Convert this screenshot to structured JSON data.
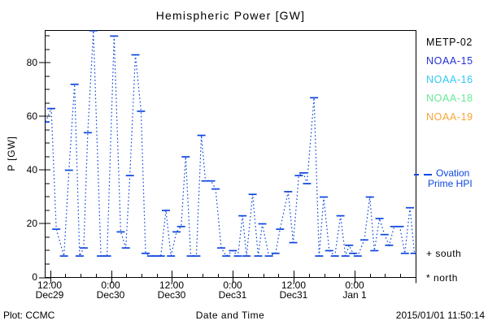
{
  "title": "Hemispheric Power [GW]",
  "footer": {
    "plot_credit": "Plot: CCMC",
    "timestamp": "2015/01/01 11:50:14"
  },
  "legend": {
    "satellites": [
      {
        "label": "METP-02",
        "color": "#000000"
      },
      {
        "label": "NOAA-15",
        "color": "#2231d9"
      },
      {
        "label": "NOAA-16",
        "color": "#2fc6f8"
      },
      {
        "label": "NOAA-18",
        "color": "#66e896"
      },
      {
        "label": "NOAA-19",
        "color": "#f7a437"
      }
    ],
    "line_series": {
      "label_line1": "Ovation",
      "label_line2": "Prime HPI",
      "color": "#0d47e0"
    },
    "symbols": [
      {
        "symbol": "+",
        "label": "south"
      },
      {
        "symbol": "*",
        "label": "north"
      }
    ]
  },
  "chart_data": {
    "type": "line",
    "title": "Hemispheric Power [GW]",
    "xlabel": "Date and Time",
    "ylabel": "P [GW]",
    "series_name": "Ovation Prime HPI",
    "line_style": "dotted connectors with horizontal dash markers",
    "color": "#0d46dd",
    "ylim": [
      0,
      92.1
    ],
    "y_major_ticks": [
      0,
      20,
      40,
      60,
      80
    ],
    "y_minor_step": 5,
    "x_range_hours": [
      -1,
      72.1
    ],
    "x_minor_step_hours": 3,
    "x_major_ticks": [
      {
        "t": 0,
        "time": "12:00",
        "date": "Dec29"
      },
      {
        "t": 12,
        "time": "0:00",
        "date": "Dec30"
      },
      {
        "t": 24,
        "time": "12:00",
        "date": "Dec30"
      },
      {
        "t": 36,
        "time": "0:00",
        "date": "Dec31"
      },
      {
        "t": 48,
        "time": "12:00",
        "date": "Dec31"
      },
      {
        "t": 60,
        "time": "0:00",
        "date": "Jan 1"
      },
      {
        "t": 72,
        "time": "",
        "date": ""
      }
    ],
    "points": [
      [
        -0.9,
        58
      ],
      [
        0.2,
        63
      ],
      [
        1.2,
        18
      ],
      [
        2.7,
        8
      ],
      [
        3.7,
        40
      ],
      [
        4.8,
        72
      ],
      [
        5.8,
        8
      ],
      [
        6.6,
        11
      ],
      [
        7.4,
        54
      ],
      [
        8.5,
        92
      ],
      [
        10.0,
        8
      ],
      [
        11.2,
        8
      ],
      [
        12.6,
        90
      ],
      [
        13.9,
        17
      ],
      [
        14.9,
        11
      ],
      [
        15.7,
        38
      ],
      [
        16.8,
        83
      ],
      [
        17.9,
        62
      ],
      [
        18.8,
        9
      ],
      [
        19.9,
        8
      ],
      [
        20.9,
        8
      ],
      [
        21.8,
        8
      ],
      [
        22.8,
        25
      ],
      [
        23.8,
        8
      ],
      [
        24.9,
        17
      ],
      [
        25.8,
        19
      ],
      [
        26.7,
        45
      ],
      [
        27.7,
        8
      ],
      [
        28.8,
        8
      ],
      [
        29.8,
        53
      ],
      [
        30.6,
        36
      ],
      [
        31.7,
        36
      ],
      [
        32.6,
        33
      ],
      [
        33.7,
        11
      ],
      [
        34.7,
        8
      ],
      [
        36.0,
        10
      ],
      [
        37.0,
        8
      ],
      [
        37.9,
        23
      ],
      [
        38.7,
        8
      ],
      [
        39.9,
        31
      ],
      [
        41.0,
        8
      ],
      [
        41.8,
        20
      ],
      [
        43.1,
        8
      ],
      [
        44.4,
        9
      ],
      [
        45.3,
        18
      ],
      [
        46.9,
        32
      ],
      [
        47.9,
        13
      ],
      [
        49.0,
        38
      ],
      [
        49.9,
        39
      ],
      [
        50.6,
        35
      ],
      [
        52.0,
        67
      ],
      [
        53.0,
        8
      ],
      [
        53.9,
        30
      ],
      [
        55.0,
        10
      ],
      [
        56.1,
        8
      ],
      [
        57.2,
        23
      ],
      [
        58.2,
        8
      ],
      [
        58.9,
        12
      ],
      [
        59.7,
        9
      ],
      [
        60.6,
        8
      ],
      [
        61.9,
        14
      ],
      [
        63.0,
        30
      ],
      [
        63.9,
        10
      ],
      [
        64.9,
        22
      ],
      [
        65.9,
        16
      ],
      [
        66.8,
        12
      ],
      [
        67.8,
        19
      ],
      [
        68.9,
        19
      ],
      [
        69.9,
        9
      ],
      [
        70.9,
        26
      ],
      [
        71.8,
        9
      ]
    ]
  }
}
